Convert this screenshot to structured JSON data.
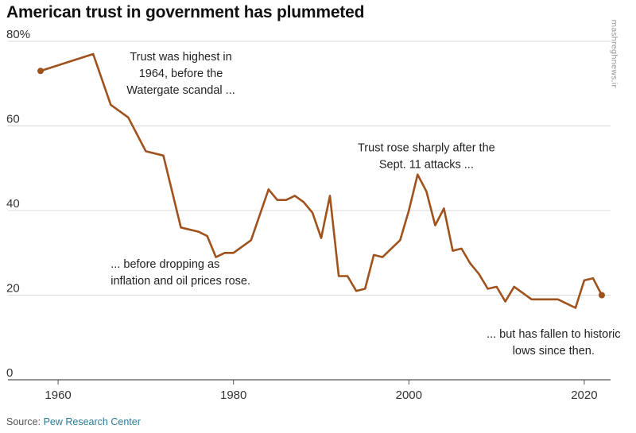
{
  "header": {
    "title": "American trust in government has plummeted"
  },
  "source": {
    "prefix": "Source:",
    "org": "Pew Research Center"
  },
  "watermark": {
    "text": "mashreghnews.ir"
  },
  "colors": {
    "line": "#a0521d",
    "grid": "#d9d9d9",
    "axis": "#555555"
  },
  "chart_data": {
    "type": "line",
    "title": "American trust in government has plummeted",
    "xlabel": "",
    "ylabel": "",
    "xlim": [
      1957,
      2023
    ],
    "ylim": [
      0,
      80
    ],
    "x_ticks": [
      1960,
      1980,
      2000,
      2020
    ],
    "y_ticks": [
      {
        "value": 0,
        "label": "0"
      },
      {
        "value": 20,
        "label": "20"
      },
      {
        "value": 40,
        "label": "40"
      },
      {
        "value": 60,
        "label": "60"
      },
      {
        "value": 80,
        "label": "80%"
      }
    ],
    "grid": true,
    "series": [
      {
        "name": "Trust in government",
        "x": [
          1958,
          1964,
          1966,
          1968,
          1970,
          1972,
          1974,
          1976,
          1977,
          1978,
          1979,
          1980,
          1982,
          1984,
          1985,
          1986,
          1987,
          1988,
          1989,
          1990,
          1991,
          1992,
          1993,
          1994,
          1995,
          1996,
          1997,
          1998,
          1999,
          2000,
          2001,
          2002,
          2003,
          2004,
          2005,
          2006,
          2007,
          2008,
          2009,
          2010,
          2011,
          2012,
          2014,
          2016,
          2017,
          2019,
          2020,
          2021,
          2022
        ],
        "values": [
          73,
          77,
          65,
          62,
          54,
          53,
          36,
          35,
          34,
          29,
          30,
          30,
          33,
          45,
          42.5,
          42.5,
          43.5,
          42,
          39.5,
          33.5,
          43.5,
          24.5,
          24.5,
          21,
          21.5,
          29.5,
          29,
          31,
          33,
          40,
          48.5,
          44.5,
          36.5,
          40.5,
          30.5,
          31,
          27.5,
          25,
          21.5,
          22,
          18.5,
          22,
          19,
          19,
          19,
          17,
          23.5,
          24,
          20
        ]
      }
    ],
    "annotations": [
      {
        "x": 1974,
        "y": 75.5,
        "anchor": "middle",
        "lines": [
          "Trust was highest in",
          "1964, before the",
          "Watergate scandal ..."
        ]
      },
      {
        "x": 1966,
        "y": 26.5,
        "anchor": "start",
        "lines": [
          "... before dropping as",
          "inflation and oil prices rose."
        ]
      },
      {
        "x": 2002,
        "y": 54,
        "anchor": "middle",
        "lines": [
          "Trust rose sharply after the",
          "Sept. 11 attacks ..."
        ]
      },
      {
        "x": 2016.5,
        "y": 10,
        "anchor": "middle",
        "lines": [
          "... but has fallen to historic",
          "lows since then."
        ]
      }
    ]
  }
}
